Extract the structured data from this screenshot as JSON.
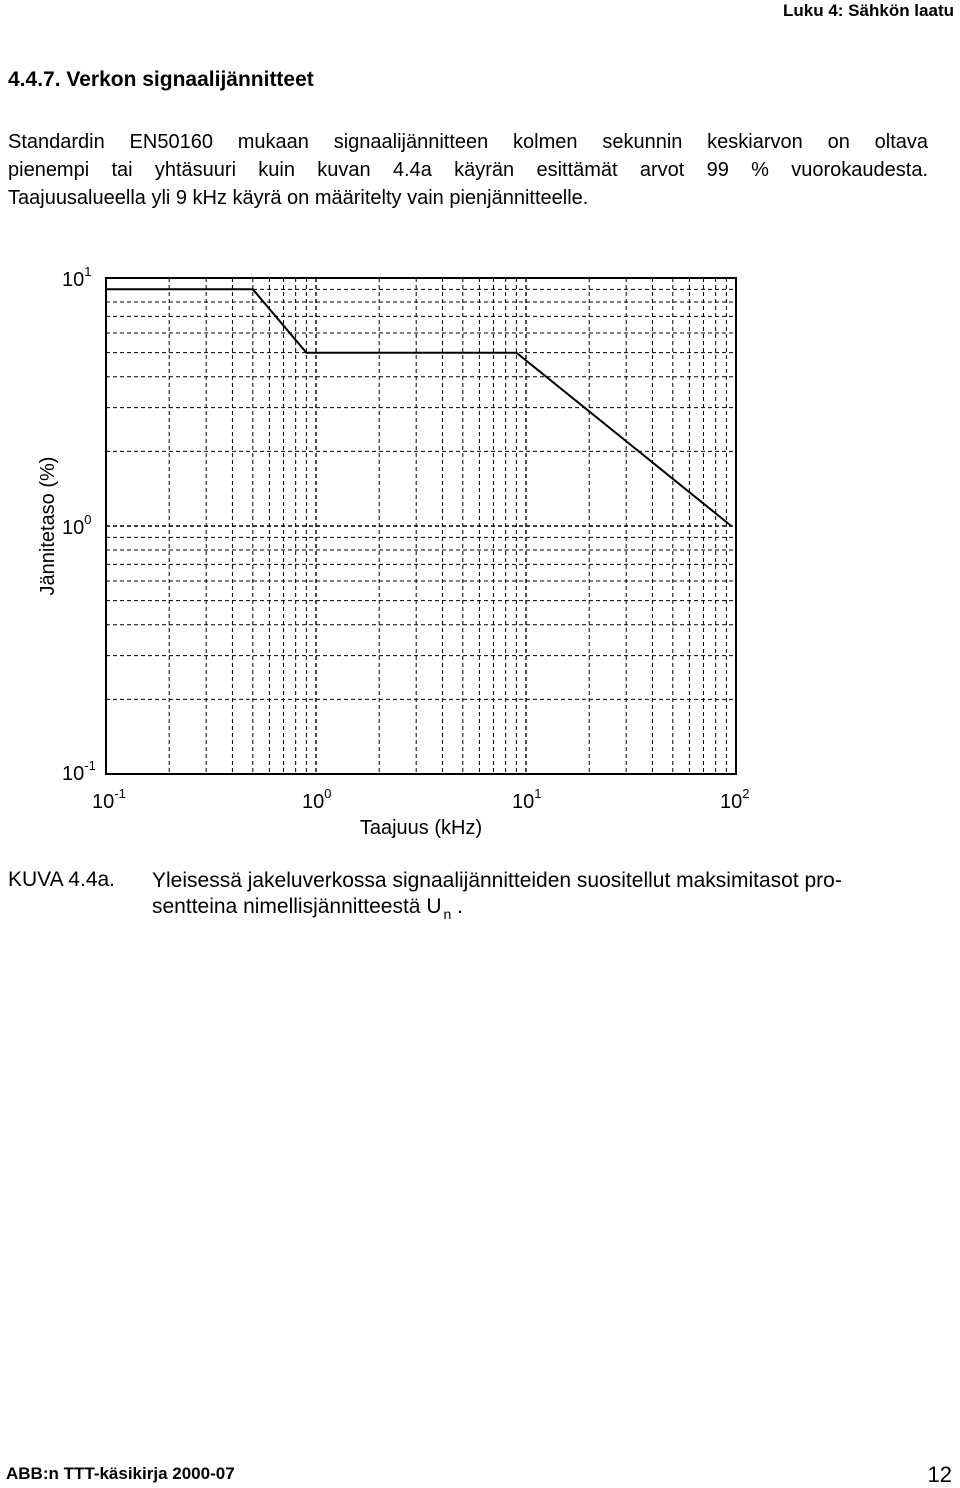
{
  "header": {
    "chapter": "Luku 4: Sähkön laatu"
  },
  "section": {
    "title": "4.4.7. Verkon signaalijännitteet"
  },
  "paragraph": {
    "lines": [
      "Standardin EN50160 mukaan signaalijännitteen kolmen sekunnin keskiarvon on oltava",
      "pienempi tai yhtäsuuri kuin kuvan 4.4a käyrän esittämät arvot 99 % vuorokaudesta.",
      "Taajuusalueella yli 9 kHz käyrä on määritelty vain pienjännitteelle."
    ]
  },
  "chart_data": {
    "type": "line",
    "xscale": "log",
    "yscale": "log",
    "xlim": [
      0.1,
      100
    ],
    "ylim": [
      0.1,
      10
    ],
    "xlabel": "Taajuus (kHz)",
    "ylabel": "Jännitetaso (%)",
    "x_ticks": [
      {
        "base": "10",
        "exp": "-1"
      },
      {
        "base": "10",
        "exp": "0"
      },
      {
        "base": "10",
        "exp": "1"
      },
      {
        "base": "10",
        "exp": "2"
      }
    ],
    "y_ticks": [
      {
        "base": "10",
        "exp": "-1"
      },
      {
        "base": "10",
        "exp": "0"
      },
      {
        "base": "10",
        "exp": "1"
      }
    ],
    "grid": true,
    "series": [
      {
        "x": [
          0.1,
          0.5,
          0.9,
          9,
          95
        ],
        "y": [
          9,
          9,
          5,
          5,
          1
        ]
      }
    ]
  },
  "caption": {
    "label": "KUVA 4.4a.",
    "line1": "Yleisessä jakeluverkossa signaalijännitteiden suositellut maksimitasot pro-",
    "line2": "sentteina nimellisjännitteestä U",
    "line2_sub": "n",
    "line2_end": "."
  },
  "footer": {
    "left": "ABB:n TTT-käsikirja 2000-07",
    "page": "12"
  }
}
